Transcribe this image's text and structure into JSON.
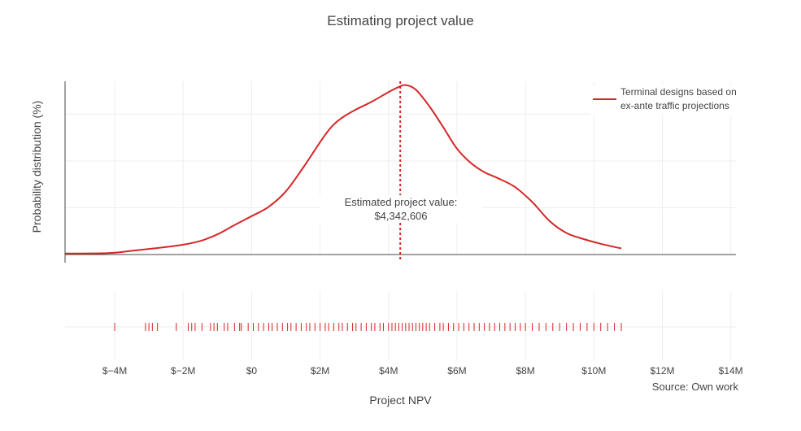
{
  "chart_data": {
    "type": "line",
    "title": "Estimating project value",
    "xlabel": "Project NPV",
    "ylabel": "Probability distribution (%)",
    "source": "Source: Own work",
    "x_tick_labels": [
      "$−4M",
      "$−2M",
      "$0",
      "$2M",
      "$4M",
      "$6M",
      "$8M",
      "$10M",
      "$12M",
      "$14M"
    ],
    "x_tick_values": [
      -4,
      -2,
      0,
      2,
      4,
      6,
      8,
      10,
      12,
      14
    ],
    "xlim": [
      -5.45,
      14.15
    ],
    "ylim": [
      0,
      0.37
    ],
    "legend_position": "top-right",
    "series": [
      {
        "name": "Terminal designs based on ex-ante traffic projections",
        "legend_line1": "Terminal designs based on",
        "legend_line2": "ex-ante traffic projections",
        "color": "#d62728",
        "x": [
          -5.45,
          -4.2,
          -3.5,
          -3.0,
          -2.5,
          -2.0,
          -1.5,
          -1.0,
          -0.5,
          0.0,
          0.5,
          1.0,
          1.5,
          2.0,
          2.3,
          2.6,
          3.0,
          3.5,
          4.0,
          4.3,
          4.5,
          4.8,
          5.2,
          5.6,
          6.0,
          6.4,
          6.8,
          7.2,
          7.7,
          8.2,
          8.7,
          9.2,
          9.7,
          10.2,
          10.8
        ],
        "y": [
          0.002,
          0.003,
          0.008,
          0.012,
          0.016,
          0.021,
          0.029,
          0.043,
          0.063,
          0.082,
          0.102,
          0.135,
          0.185,
          0.24,
          0.27,
          0.29,
          0.308,
          0.326,
          0.347,
          0.358,
          0.362,
          0.352,
          0.316,
          0.272,
          0.226,
          0.196,
          0.176,
          0.163,
          0.144,
          0.112,
          0.072,
          0.046,
          0.033,
          0.023,
          0.013
        ]
      }
    ],
    "rug_x": [
      -4.0,
      -3.1,
      -3.0,
      -2.9,
      -2.75,
      -2.2,
      -1.85,
      -1.75,
      -1.65,
      -1.45,
      -1.2,
      -1.1,
      -1.0,
      -0.8,
      -0.7,
      -0.5,
      -0.35,
      -0.3,
      -0.1,
      0.05,
      0.2,
      0.35,
      0.5,
      0.6,
      0.75,
      0.9,
      1.05,
      1.15,
      1.3,
      1.45,
      1.6,
      1.7,
      1.85,
      2.0,
      2.15,
      2.25,
      2.4,
      2.55,
      2.65,
      2.8,
      2.95,
      3.05,
      3.2,
      3.35,
      3.5,
      3.6,
      3.75,
      3.85,
      4.0,
      4.1,
      4.2,
      4.3,
      4.4,
      4.5,
      4.6,
      4.7,
      4.8,
      4.9,
      5.0,
      5.1,
      5.2,
      5.35,
      5.5,
      5.6,
      5.75,
      5.9,
      6.05,
      6.2,
      6.35,
      6.5,
      6.65,
      6.8,
      6.95,
      7.1,
      7.25,
      7.4,
      7.55,
      7.7,
      7.85,
      8.0,
      8.2,
      8.4,
      8.6,
      8.8,
      9.0,
      9.2,
      9.4,
      9.6,
      9.8,
      10.0,
      10.2,
      10.4,
      10.6,
      10.8
    ],
    "annotation": {
      "x": 4.342606,
      "label": "Estimated project value:",
      "value": "$4,342,606"
    }
  }
}
